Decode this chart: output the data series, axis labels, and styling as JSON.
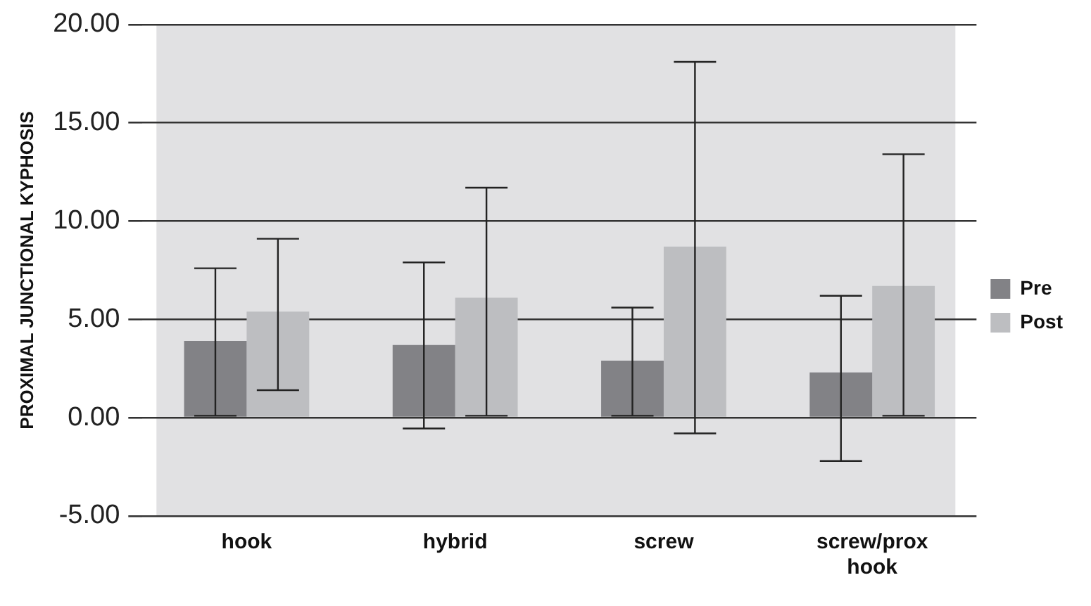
{
  "chart_data": {
    "type": "bar",
    "ylabel": "PROXIMAL JUNCTIONAL KYPHOSIS",
    "categories": [
      "hook",
      "hybrid",
      "screw",
      "screw/prox hook"
    ],
    "series": [
      {
        "name": "Pre",
        "color": "#828286",
        "values": [
          3.9,
          3.7,
          2.9,
          2.3
        ],
        "errors": [
          [
            0.1,
            7.6
          ],
          [
            -0.55,
            7.9
          ],
          [
            0.1,
            5.6
          ],
          [
            -2.2,
            6.2
          ]
        ]
      },
      {
        "name": "Post",
        "color": "#bdbec1",
        "values": [
          5.4,
          6.1,
          8.7,
          6.7
        ],
        "errors": [
          [
            1.4,
            9.1
          ],
          [
            0.1,
            11.7
          ],
          [
            -0.8,
            18.1
          ],
          [
            0.1,
            13.4
          ]
        ]
      }
    ],
    "ylim": [
      -5,
      20
    ],
    "yticks": [
      {
        "value": -5,
        "label": "-5.00"
      },
      {
        "value": 0,
        "label": "0.00"
      },
      {
        "value": 5,
        "label": "5.00"
      },
      {
        "value": 10,
        "label": "10.00"
      },
      {
        "value": 15,
        "label": "15.00"
      },
      {
        "value": 20,
        "label": "20.00"
      }
    ],
    "grid": "y",
    "legend": "right"
  }
}
